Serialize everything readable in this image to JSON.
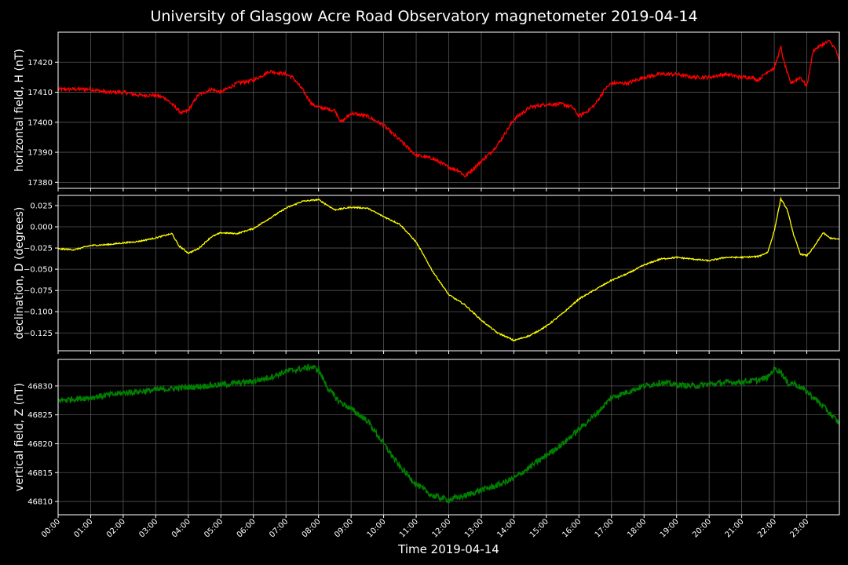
{
  "title": "University of Glasgow Acre Road Observatory magnetometer 2019-04-14",
  "xlabel": "Time 2019-04-14",
  "background": "#000000",
  "chart_data": {
    "type": "line",
    "grid": true,
    "x_ticks": [
      "00:00",
      "01:00",
      "02:00",
      "03:00",
      "04:00",
      "05:00",
      "06:00",
      "07:00",
      "08:00",
      "09:00",
      "10:00",
      "11:00",
      "12:00",
      "13:00",
      "14:00",
      "15:00",
      "16:00",
      "17:00",
      "18:00",
      "19:00",
      "20:00",
      "21:00",
      "22:00",
      "23:00"
    ],
    "xlim": [
      0,
      24
    ],
    "panels": [
      {
        "ylabel": "horizontal field, H (nT)",
        "color": "#ff0000",
        "ylim": [
          17378,
          17430
        ],
        "y_ticks": [
          "17380",
          "17390",
          "17400",
          "17410",
          "17420"
        ],
        "y_tick_values": [
          17380,
          17390,
          17400,
          17410,
          17420
        ],
        "noise": 0.6,
        "x": [
          0,
          0.5,
          1,
          1.5,
          2,
          2.5,
          3,
          3.3,
          3.6,
          3.8,
          4,
          4.3,
          4.7,
          5,
          5.5,
          6,
          6.5,
          7,
          7.2,
          7.5,
          7.8,
          8,
          8.5,
          8.7,
          9,
          9.5,
          10,
          10.5,
          11,
          11.5,
          12,
          12.3,
          12.5,
          12.8,
          13,
          13.3,
          13.6,
          14,
          14.5,
          15,
          15.5,
          15.8,
          16,
          16.3,
          16.5,
          16.8,
          17,
          17.5,
          18,
          18.5,
          19,
          19.5,
          20,
          20.5,
          21,
          21.3,
          21.5,
          21.8,
          22,
          22.2,
          22.3,
          22.5,
          22.8,
          23,
          23.2,
          23.5,
          23.7,
          23.9,
          24
        ],
        "y": [
          17411,
          17411,
          17411,
          17410,
          17410,
          17409,
          17409,
          17408,
          17405,
          17403,
          17404,
          17409,
          17411,
          17410,
          17413,
          17414,
          17417,
          17416,
          17415,
          17411,
          17406,
          17405,
          17404,
          17400,
          17403,
          17402,
          17399,
          17394,
          17389,
          17388,
          17385,
          17384,
          17382,
          17385,
          17387,
          17390,
          17394,
          17401,
          17405,
          17406,
          17406,
          17405,
          17402,
          17404,
          17406,
          17411,
          17413,
          17413,
          17415,
          17416,
          17416,
          17415,
          17415,
          17416,
          17415,
          17415,
          17414,
          17417,
          17418,
          17425,
          17420,
          17413,
          17415,
          17412,
          17424,
          17426,
          17427,
          17424,
          17420
        ]
      },
      {
        "ylabel": "declination, D (degrees)",
        "color": "#ffff00",
        "ylim": [
          -0.146,
          0.037
        ],
        "y_ticks": [
          "0.025",
          "0.000",
          "−0.025",
          "−0.050",
          "−0.075",
          "−0.100",
          "−0.125"
        ],
        "y_tick_values": [
          0.025,
          0.0,
          -0.025,
          -0.05,
          -0.075,
          -0.1,
          -0.125
        ],
        "noise": 0.0008,
        "x": [
          0,
          0.5,
          1,
          1.5,
          2,
          2.5,
          3,
          3.5,
          3.7,
          4,
          4.3,
          4.7,
          5,
          5.5,
          6,
          6.5,
          7,
          7.5,
          8,
          8.5,
          9,
          9.5,
          10,
          10.5,
          11,
          11.5,
          12,
          12.5,
          13,
          13.5,
          13.8,
          14,
          14.5,
          15,
          15.5,
          16,
          16.5,
          17,
          17.5,
          18,
          18.5,
          19,
          19.5,
          20,
          20.5,
          21,
          21.5,
          21.8,
          22,
          22.2,
          22.4,
          22.6,
          22.8,
          23,
          23.2,
          23.5,
          23.7,
          24
        ],
        "y": [
          -0.026,
          -0.027,
          -0.022,
          -0.021,
          -0.019,
          -0.017,
          -0.013,
          -0.008,
          -0.022,
          -0.031,
          -0.026,
          -0.012,
          -0.007,
          -0.008,
          -0.002,
          0.01,
          0.022,
          0.03,
          0.032,
          0.02,
          0.023,
          0.022,
          0.012,
          0.003,
          -0.018,
          -0.052,
          -0.08,
          -0.092,
          -0.11,
          -0.125,
          -0.13,
          -0.134,
          -0.128,
          -0.117,
          -0.102,
          -0.085,
          -0.074,
          -0.063,
          -0.055,
          -0.045,
          -0.038,
          -0.036,
          -0.038,
          -0.04,
          -0.036,
          -0.036,
          -0.035,
          -0.03,
          -0.005,
          0.033,
          0.02,
          -0.01,
          -0.032,
          -0.034,
          -0.025,
          -0.007,
          -0.013,
          -0.015
        ]
      },
      {
        "ylabel": "vertical field, Z (nT)",
        "color": "#008000",
        "ylim": [
          46807.7,
          46834.6
        ],
        "y_ticks": [
          "46810",
          "46815",
          "46820",
          "46825",
          "46830"
        ],
        "y_tick_values": [
          46810,
          46815,
          46820,
          46825,
          46830
        ],
        "noise": 0.5,
        "x": [
          0,
          1,
          2,
          3,
          4,
          5,
          6,
          6.5,
          7,
          7.5,
          7.8,
          8,
          8.3,
          8.6,
          9,
          9.5,
          10,
          10.5,
          11,
          11.5,
          12,
          12.5,
          13,
          13.5,
          14,
          14.5,
          15,
          15.5,
          16,
          16.5,
          17,
          17.5,
          18,
          18.5,
          19,
          19.5,
          20,
          20.5,
          21,
          21.5,
          21.8,
          22,
          22.2,
          22.4,
          22.6,
          23,
          23.5,
          24
        ],
        "y": [
          46827.5,
          46828,
          46828.8,
          46829.3,
          46829.8,
          46830.2,
          46830.8,
          46831.5,
          46832.5,
          46833,
          46833.3,
          46832.8,
          46829.5,
          46827.5,
          46826,
          46824,
          46820,
          46816,
          46813,
          46811,
          46810.3,
          46811,
          46812,
          46812.8,
          46814,
          46816,
          46818,
          46820,
          46822.5,
          46825,
          46828,
          46829,
          46830,
          46830.6,
          46830.2,
          46830,
          46830.3,
          46830.6,
          46830.7,
          46831,
          46831.5,
          46833,
          46832.5,
          46830.5,
          46830.5,
          46829,
          46826.5,
          46823.5
        ]
      }
    ]
  }
}
